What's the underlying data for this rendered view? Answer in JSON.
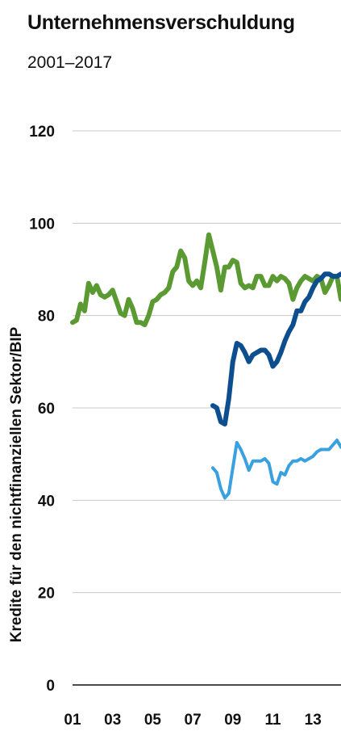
{
  "chart_data": {
    "type": "line",
    "title": "Unternehmensverschuldung",
    "subtitle": "2001–2017",
    "ylabel": "Kredite für den nichtfinanziellen Sektor/BIP",
    "xlabel": "",
    "ylim": [
      0,
      120
    ],
    "yticks": [
      0,
      20,
      40,
      60,
      80,
      100,
      120
    ],
    "xticks": [
      "01",
      "03",
      "05",
      "07",
      "09",
      "11",
      "13"
    ],
    "xlim": [
      2001,
      2014.4
    ],
    "grid": true,
    "legend": "none",
    "series": [
      {
        "color": "#5b9a32",
        "x": [
          2001.0,
          2001.2,
          2001.4,
          2001.6,
          2001.8,
          2002.0,
          2002.2,
          2002.4,
          2002.6,
          2002.8,
          2003.0,
          2003.2,
          2003.4,
          2003.6,
          2003.8,
          2004.0,
          2004.2,
          2004.4,
          2004.6,
          2004.8,
          2005.0,
          2005.2,
          2005.4,
          2005.6,
          2005.8,
          2006.0,
          2006.2,
          2006.4,
          2006.6,
          2006.8,
          2007.0,
          2007.2,
          2007.4,
          2007.6,
          2007.8,
          2008.0,
          2008.2,
          2008.4,
          2008.6,
          2008.8,
          2009.0,
          2009.2,
          2009.4,
          2009.6,
          2009.8,
          2010.0,
          2010.2,
          2010.4,
          2010.6,
          2010.8,
          2011.0,
          2011.2,
          2011.4,
          2011.6,
          2011.8,
          2012.0,
          2012.2,
          2012.4,
          2012.6,
          2012.8,
          2013.0,
          2013.2,
          2013.4,
          2013.6,
          2013.8,
          2014.0,
          2014.2,
          2014.4
        ],
        "values": [
          78.5,
          79.0,
          82.5,
          81.0,
          87.0,
          85.0,
          86.5,
          84.5,
          84.0,
          84.5,
          85.5,
          83.0,
          80.5,
          80.0,
          83.5,
          81.5,
          78.5,
          78.5,
          78.0,
          80.0,
          83.0,
          83.5,
          84.5,
          85.0,
          86.0,
          89.5,
          90.5,
          94.0,
          92.5,
          87.5,
          86.5,
          87.5,
          86.0,
          91.5,
          97.5,
          94.0,
          90.5,
          85.5,
          90.5,
          90.5,
          92.0,
          91.5,
          87.0,
          86.0,
          86.5,
          86.0,
          88.5,
          88.5,
          86.5,
          86.5,
          88.5,
          87.5,
          88.5,
          88.0,
          87.0,
          83.5,
          86.0,
          87.5,
          88.5,
          88.0,
          87.5,
          88.5,
          88.0,
          85.0,
          86.5,
          88.5,
          88.5,
          83.5
        ]
      },
      {
        "color": "#0d4e8f",
        "x": [
          2008.0,
          2008.2,
          2008.4,
          2008.6,
          2008.8,
          2009.0,
          2009.2,
          2009.4,
          2009.6,
          2009.8,
          2010.0,
          2010.2,
          2010.4,
          2010.6,
          2010.8,
          2011.0,
          2011.2,
          2011.4,
          2011.6,
          2011.8,
          2012.0,
          2012.2,
          2012.4,
          2012.6,
          2012.8,
          2013.0,
          2013.2,
          2013.4,
          2013.6,
          2013.8,
          2014.0,
          2014.2,
          2014.4
        ],
        "values": [
          60.5,
          60.0,
          57.0,
          56.5,
          62.0,
          70.0,
          74.0,
          73.5,
          72.0,
          70.0,
          71.5,
          72.0,
          72.5,
          72.5,
          71.5,
          69.0,
          70.0,
          72.0,
          74.5,
          76.5,
          78.0,
          81.0,
          81.0,
          83.0,
          84.0,
          86.0,
          87.5,
          88.0,
          89.0,
          89.0,
          88.5,
          88.5,
          89.0
        ]
      },
      {
        "color": "#3aa0e0",
        "x": [
          2008.0,
          2008.2,
          2008.4,
          2008.6,
          2008.8,
          2009.0,
          2009.2,
          2009.4,
          2009.6,
          2009.8,
          2010.0,
          2010.2,
          2010.4,
          2010.6,
          2010.8,
          2011.0,
          2011.2,
          2011.4,
          2011.6,
          2011.8,
          2012.0,
          2012.2,
          2012.4,
          2012.6,
          2012.8,
          2013.0,
          2013.2,
          2013.4,
          2013.6,
          2013.8,
          2014.0,
          2014.2,
          2014.4
        ],
        "values": [
          47.0,
          46.0,
          42.5,
          40.5,
          41.5,
          47.0,
          52.5,
          51.0,
          49.0,
          46.5,
          48.5,
          48.5,
          48.5,
          49.0,
          48.0,
          44.0,
          43.5,
          46.0,
          45.5,
          47.5,
          48.5,
          48.5,
          49.0,
          48.5,
          49.0,
          49.5,
          50.5,
          51.0,
          51.0,
          51.0,
          52.0,
          53.0,
          51.5
        ]
      }
    ]
  }
}
